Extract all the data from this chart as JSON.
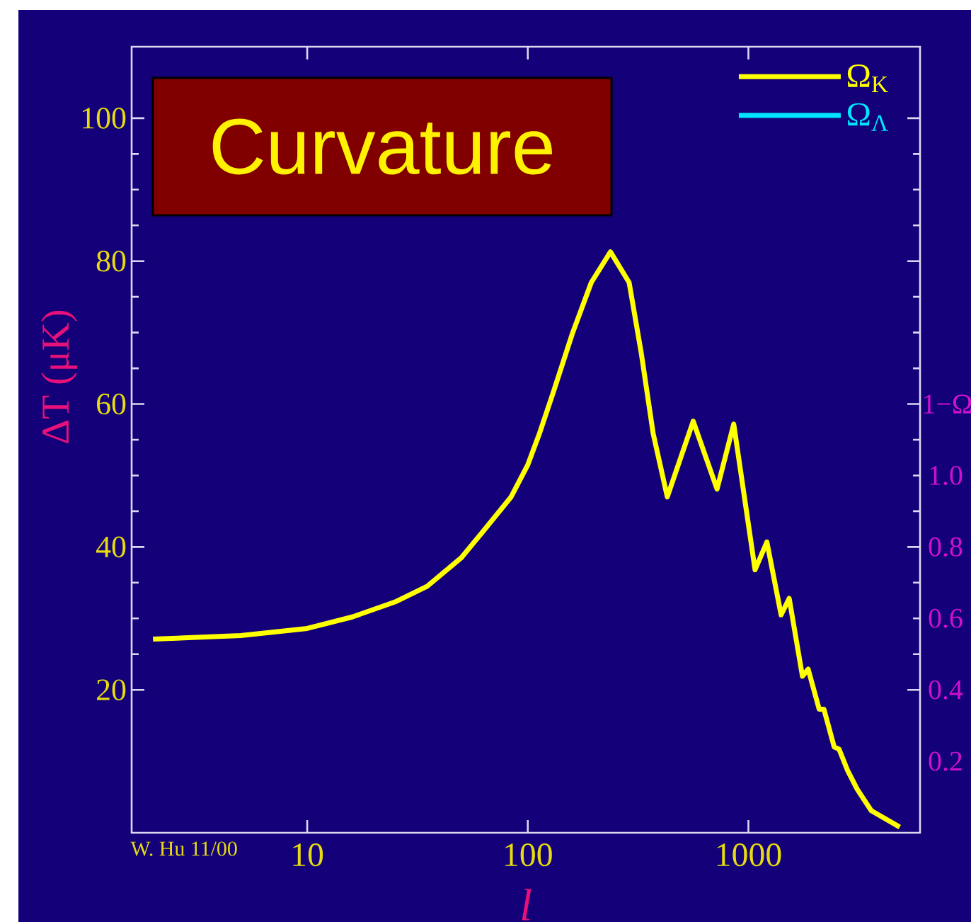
{
  "chart_data": {
    "type": "line",
    "title": "Curvature",
    "xlabel": "l",
    "ylabel": "ΔT (μK)",
    "y2label": "1−Ω",
    "annotations": [
      "W. Hu 11/00"
    ],
    "log": "x",
    "xlim": [
      1.6,
      6000
    ],
    "xticks": [
      10,
      100,
      1000
    ],
    "ylim": [
      0,
      110
    ],
    "yticks": [
      20,
      40,
      60,
      80,
      100
    ],
    "y2lim": [
      0,
      2.2
    ],
    "y2ticks": [
      {
        "value": 0.2,
        "label": "0.2"
      },
      {
        "value": 0.4,
        "label": "0.4"
      },
      {
        "value": 0.6,
        "label": "0.6"
      },
      {
        "value": 0.8,
        "label": "0.8"
      },
      {
        "value": 1.0,
        "label": "1.0"
      }
    ],
    "legend": "top right",
    "marker": "none",
    "line_style": "solid",
    "grid": false,
    "series": [
      {
        "name": "Ω$_{K}$",
        "color": "#ffff00",
        "x": [
          2,
          5,
          10,
          16,
          25,
          35,
          50,
          62,
          84,
          100,
          113,
          131,
          159,
          194,
          237,
          288,
          327,
          370,
          429,
          562,
          721,
          858,
          1072,
          1213,
          1407,
          1531,
          1758,
          1866,
          2093,
          2199,
          2449,
          2577,
          2818,
          3112,
          3606,
          4853
        ],
        "values": [
          27.1,
          27.6,
          28.6,
          30.2,
          32.3,
          34.5,
          38.5,
          42.0,
          47.0,
          51.5,
          55.9,
          61.8,
          69.8,
          77.0,
          81.3,
          77.0,
          67.1,
          55.9,
          47.0,
          57.6,
          48.1,
          57.2,
          36.8,
          40.7,
          30.5,
          32.8,
          21.9,
          22.9,
          17.3,
          17.3,
          12.0,
          11.7,
          8.7,
          6.1,
          3.1,
          0.8
        ]
      },
      {
        "name": "Ω$_{Λ}$",
        "color": "#00e5ff"
      }
    ]
  }
}
